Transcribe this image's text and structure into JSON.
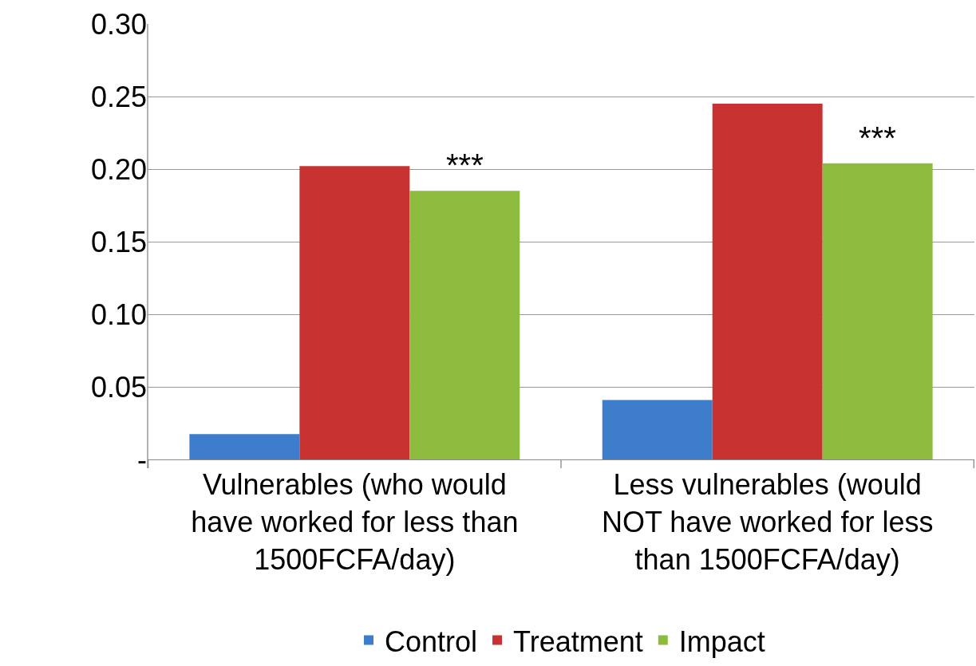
{
  "chart_data": {
    "type": "bar",
    "categories": [
      "Vulnerables (who would have worked for less than 1500FCFA/day)",
      "Less vulnerables (would NOT have worked for less than 1500FCFA/day)"
    ],
    "series": [
      {
        "name": "Control",
        "color": "#3d7dcc",
        "values": [
          0.0175,
          0.041
        ]
      },
      {
        "name": "Treatment",
        "color": "#c83230",
        "values": [
          0.202,
          0.245
        ]
      },
      {
        "name": "Impact",
        "color": "#8dbb3e",
        "values": [
          0.185,
          0.204
        ]
      }
    ],
    "ylim": [
      0,
      0.3
    ],
    "yticks": [
      {
        "value": 0,
        "label": "-"
      },
      {
        "value": 0.05,
        "label": "0.05"
      },
      {
        "value": 0.1,
        "label": "0.10"
      },
      {
        "value": 0.15,
        "label": "0.15"
      },
      {
        "value": 0.2,
        "label": "0.20"
      },
      {
        "value": 0.25,
        "label": "0.25"
      },
      {
        "value": 0.3,
        "label": "0.30"
      }
    ],
    "annotations": [
      "***",
      "***"
    ],
    "grid": "y",
    "legend": "bottom"
  }
}
